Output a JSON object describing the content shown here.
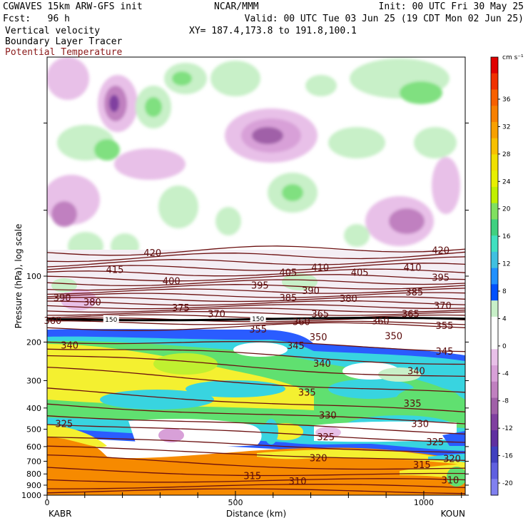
{
  "header": {
    "model": "CGWAVES 15km ARW-GFS init",
    "fcst": "Fcst:   96 h",
    "center": "NCAR/MMM",
    "init": "Init: 00 UTC Fri 30 May 25",
    "valid": "Valid: 00 UTC Tue 03 Jun 25 (19 CDT Mon 02 Jun 25)",
    "xy": "XY= 187.4,173.8 to 191.8,100.1",
    "field1": "Vertical velocity",
    "field2": "Boundary Layer Tracer",
    "field3": "Potential Temperature"
  },
  "colors": {
    "theta": "#6b0f0f",
    "tropopause": "#000000"
  },
  "chart_data": {
    "type": "cross-section",
    "xlabel": "Distance (km)",
    "ylabel": "Pressure (hPa), log scale",
    "x_endpoints": [
      "KABR",
      "KOUN"
    ],
    "xlim": [
      0,
      1110
    ],
    "x_ticks": [
      0,
      500,
      1000
    ],
    "ylim": [
      1000,
      10
    ],
    "y_scale": "log",
    "y_ticks": [
      1000,
      900,
      800,
      700,
      600,
      500,
      400,
      300,
      200,
      100
    ],
    "colorbar": {
      "units": "cm s⁻¹",
      "labels": [
        36,
        32,
        28,
        24,
        20,
        16,
        12,
        8,
        4,
        0,
        -4,
        -8,
        -12,
        -16,
        -20
      ],
      "colors": [
        "#e00000",
        "#f03000",
        "#f86000",
        "#f88000",
        "#f8a000",
        "#f8c000",
        "#f0e000",
        "#e8f000",
        "#c0f000",
        "#80e060",
        "#40d080",
        "#40e0c0",
        "#40c0e0",
        "#2090ff",
        "#0050ff",
        "#c8f0c8",
        "#ffffff",
        "#ffffff",
        "#e8c0e8",
        "#d8a0d8",
        "#c080c0",
        "#a060a8",
        "#8040a0",
        "#6030a0",
        "#4040c0",
        "#6060e0",
        "#8080f0"
      ]
    },
    "theta_labels": [
      {
        "v": "420",
        "x": 280,
        "p": 78
      },
      {
        "v": "420",
        "x": 1045,
        "p": 76
      },
      {
        "v": "415",
        "x": 180,
        "p": 93
      },
      {
        "v": "410",
        "x": 725,
        "p": 91
      },
      {
        "v": "410",
        "x": 970,
        "p": 91
      },
      {
        "v": "405",
        "x": 640,
        "p": 96
      },
      {
        "v": "405",
        "x": 830,
        "p": 96
      },
      {
        "v": "400",
        "x": 330,
        "p": 105
      },
      {
        "v": "395",
        "x": 565,
        "p": 110
      },
      {
        "v": "395",
        "x": 1045,
        "p": 101
      },
      {
        "v": "390",
        "x": 40,
        "p": 125
      },
      {
        "v": "390",
        "x": 700,
        "p": 116
      },
      {
        "v": "385",
        "x": 640,
        "p": 125
      },
      {
        "v": "385",
        "x": 975,
        "p": 118
      },
      {
        "v": "380",
        "x": 120,
        "p": 131
      },
      {
        "v": "380",
        "x": 800,
        "p": 126
      },
      {
        "v": "375",
        "x": 355,
        "p": 139
      },
      {
        "v": "370",
        "x": 450,
        "p": 148
      },
      {
        "v": "370",
        "x": 1050,
        "p": 136
      },
      {
        "v": "365",
        "x": 725,
        "p": 148
      },
      {
        "v": "365",
        "x": 965,
        "p": 148
      },
      {
        "v": "360",
        "x": 15,
        "p": 159
      },
      {
        "v": "360",
        "x": 885,
        "p": 160
      },
      {
        "v": "360",
        "x": 675,
        "p": 161
      },
      {
        "v": "355",
        "x": 560,
        "p": 174
      },
      {
        "v": "355",
        "x": 1055,
        "p": 168
      },
      {
        "v": "350",
        "x": 720,
        "p": 189
      },
      {
        "v": "350",
        "x": 920,
        "p": 187
      },
      {
        "v": "345",
        "x": 660,
        "p": 207
      },
      {
        "v": "345",
        "x": 1055,
        "p": 220
      },
      {
        "v": "340",
        "x": 60,
        "p": 206
      },
      {
        "v": "340",
        "x": 730,
        "p": 250
      },
      {
        "v": "340",
        "x": 980,
        "p": 270
      },
      {
        "v": "335",
        "x": 690,
        "p": 338
      },
      {
        "v": "335",
        "x": 970,
        "p": 380
      },
      {
        "v": "330",
        "x": 745,
        "p": 430
      },
      {
        "v": "330",
        "x": 990,
        "p": 470
      },
      {
        "v": "325",
        "x": 45,
        "p": 470
      },
      {
        "v": "325",
        "x": 740,
        "p": 540
      },
      {
        "v": "325",
        "x": 1030,
        "p": 570
      },
      {
        "v": "320",
        "x": 720,
        "p": 675
      },
      {
        "v": "320",
        "x": 1075,
        "p": 680
      },
      {
        "v": "315",
        "x": 545,
        "p": 815
      },
      {
        "v": "315",
        "x": 995,
        "p": 725
      },
      {
        "v": "310",
        "x": 665,
        "p": 860
      },
      {
        "v": "310",
        "x": 1070,
        "p": 850
      }
    ],
    "tropopause_labels": [
      {
        "v": "150",
        "x": 170,
        "p": 158
      },
      {
        "v": "150",
        "x": 560,
        "p": 157
      }
    ]
  }
}
